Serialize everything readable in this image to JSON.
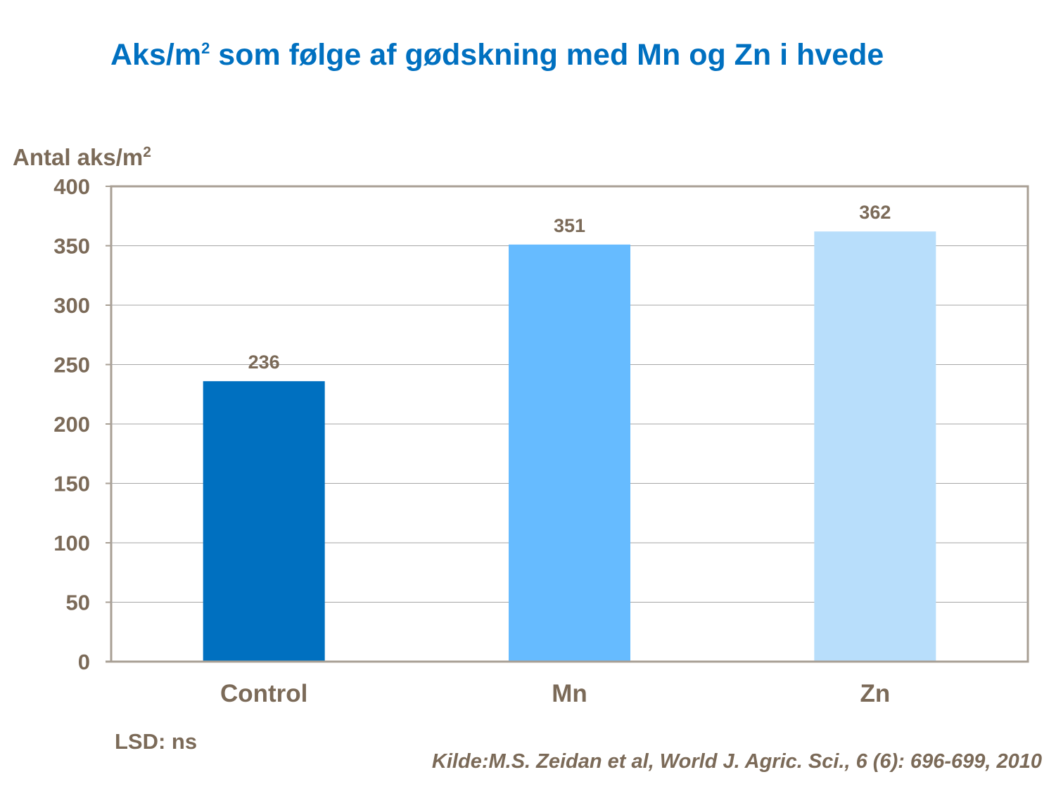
{
  "title": {
    "pre": "Aks/m",
    "sup": "2",
    "post": " som følge af gødskning med Mn og Zn i hvede"
  },
  "lsd_note": "LSD: ns",
  "source": "Kilde:M.S. Zeidan et al, World J. Agric. Sci., 6 (6): 696-699, 2010",
  "chart_data": {
    "type": "bar",
    "ylabel": {
      "text": "Antal aks/m",
      "sup": "2"
    },
    "categories": [
      "Control",
      "Mn",
      "Zn"
    ],
    "values": [
      236,
      351,
      362
    ],
    "colors": [
      "#0070C0",
      "#66BBFF",
      "#B8DEFB"
    ],
    "ylim": [
      0,
      400
    ],
    "yticks": [
      0,
      50,
      100,
      150,
      200,
      250,
      300,
      350,
      400
    ],
    "grid": true,
    "legend": "none"
  }
}
